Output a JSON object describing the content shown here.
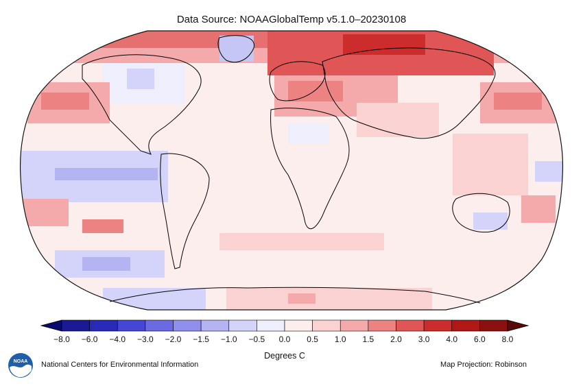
{
  "header": {
    "title": "Data Source: NOAAGlobalTemp v5.1.0–20230108"
  },
  "colorbar": {
    "tick_labels": [
      "−8.0",
      "−6.0",
      "−4.0",
      "−3.0",
      "−2.0",
      "−1.5",
      "−1.0",
      "−0.5",
      "0.0",
      "0.5",
      "1.0",
      "1.5",
      "2.0",
      "3.0",
      "4.0",
      "6.0",
      "8.0"
    ],
    "colors": [
      "#1a1a96",
      "#2a2ab8",
      "#4646d4",
      "#6a6ae2",
      "#9090ec",
      "#b4b4f2",
      "#d4d4fa",
      "#eeeefd",
      "#fdeeee",
      "#fad2d2",
      "#f4aaaa",
      "#ec8282",
      "#e05656",
      "#cc2c2c",
      "#b01818",
      "#8c1010"
    ],
    "under_color": "#0a0a6e",
    "over_color": "#5a0808",
    "units_label": "Degrees C"
  },
  "footer": {
    "org": "National Centers for Environmental Information",
    "projection": "Map Projection: Robinson",
    "logo_text": "NOAA"
  }
}
